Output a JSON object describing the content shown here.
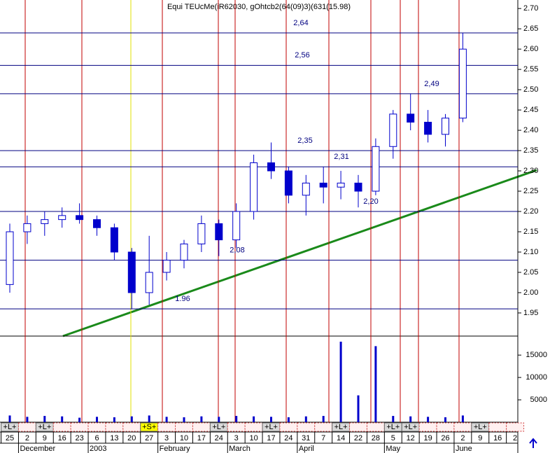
{
  "chart_data": {
    "type": "candlestick",
    "title": "Equi TEUcMe(iR62030, gOhtcb2(64(09)3)(631(15.98)",
    "categories": [
      "25",
      "2",
      "9",
      "16",
      "23",
      "6",
      "13",
      "20",
      "27",
      "3",
      "10",
      "17",
      "24",
      "3",
      "10",
      "17",
      "24",
      "31",
      "7",
      "14",
      "22",
      "28",
      "5",
      "12",
      "19",
      "26",
      "2",
      "9",
      "16",
      "2"
    ],
    "month_labels": [
      null,
      "December",
      null,
      null,
      null,
      "2003",
      null,
      null,
      null,
      "February",
      null,
      null,
      null,
      "March",
      null,
      null,
      null,
      "April",
      null,
      null,
      null,
      null,
      "May",
      null,
      null,
      null,
      "June",
      null,
      null,
      null
    ],
    "signals": [
      "+L+",
      null,
      "+L+",
      null,
      null,
      null,
      null,
      null,
      "+S+",
      null,
      null,
      null,
      "+L+",
      null,
      null,
      "+L+",
      null,
      null,
      null,
      "+L+",
      null,
      null,
      "+L+",
      "+L+",
      null,
      null,
      null,
      "+L+",
      null,
      null
    ],
    "open": [
      2.02,
      2.15,
      2.17,
      2.18,
      2.19,
      2.18,
      2.16,
      2.1,
      2.0,
      2.05,
      2.08,
      2.12,
      2.17,
      2.13,
      2.2,
      2.32,
      2.3,
      2.24,
      2.27,
      2.26,
      2.27,
      2.25,
      2.36,
      2.44,
      2.42,
      2.39,
      2.43,
      null,
      null,
      null
    ],
    "high": [
      2.17,
      2.19,
      2.2,
      2.21,
      2.22,
      2.19,
      2.17,
      2.11,
      2.14,
      2.1,
      2.13,
      2.19,
      2.18,
      2.22,
      2.34,
      2.37,
      2.31,
      2.29,
      2.31,
      2.3,
      2.29,
      2.38,
      2.45,
      2.49,
      2.45,
      2.44,
      2.64,
      null,
      null,
      null
    ],
    "low": [
      2.0,
      2.12,
      2.14,
      2.16,
      2.17,
      2.14,
      2.08,
      1.96,
      1.97,
      2.03,
      2.06,
      2.1,
      2.09,
      2.11,
      2.18,
      2.28,
      2.22,
      2.19,
      2.22,
      2.23,
      2.21,
      2.24,
      2.33,
      2.4,
      2.37,
      2.36,
      2.42,
      null,
      null,
      null
    ],
    "close": [
      2.15,
      2.17,
      2.18,
      2.19,
      2.18,
      2.16,
      2.1,
      2.0,
      2.05,
      2.08,
      2.12,
      2.17,
      2.13,
      2.2,
      2.32,
      2.3,
      2.24,
      2.27,
      2.26,
      2.27,
      2.25,
      2.36,
      2.44,
      2.42,
      2.39,
      2.43,
      2.6,
      null,
      null,
      null
    ],
    "color": "#0000cc",
    "volume": [
      1500,
      1200,
      1400,
      1300,
      1000,
      1200,
      1100,
      1300,
      1500,
      1200,
      1100,
      1300,
      1200,
      1400,
      1300,
      1200,
      1100,
      1300,
      1400,
      18000,
      6000,
      17000,
      1400,
      1300,
      1200,
      1100,
      1500,
      null,
      null,
      null
    ],
    "volume_color": "#0000cc",
    "ylim": [
      1.893,
      2.721
    ],
    "yticks": [
      1.95,
      {
        "value": 2,
        "label": "2.00"
      },
      2.05,
      {
        "value": 2.1,
        "label": "2.10"
      },
      2.15,
      {
        "value": 2.2,
        "label": "2.20"
      },
      2.25,
      {
        "value": 2.3,
        "label": "2.30"
      },
      2.35,
      {
        "value": 2.4,
        "label": "2.40"
      },
      2.45,
      {
        "value": 2.5,
        "label": "2.50"
      },
      2.55,
      {
        "value": 2.6,
        "label": "2.60"
      },
      2.65,
      {
        "value": 2.7,
        "label": "2.70"
      }
    ],
    "volume_ylim": [
      0,
      18000
    ],
    "volume_yticks": [
      5000,
      10000,
      15000
    ],
    "levels": [
      {
        "value": 2.64,
        "label": "2,64"
      },
      {
        "value": 2.56,
        "label": "2,56"
      },
      {
        "value": 2.49,
        "label": "2,49"
      },
      {
        "value": 2.35,
        "label": "2,35"
      },
      {
        "value": 2.31,
        "label": "2,31"
      },
      {
        "value": 2.2,
        "label": "2,20"
      },
      {
        "value": 2.08,
        "label": "2,08"
      },
      {
        "value": 1.96,
        "label": "1.96"
      }
    ],
    "level_color": "#000080"
  }
}
